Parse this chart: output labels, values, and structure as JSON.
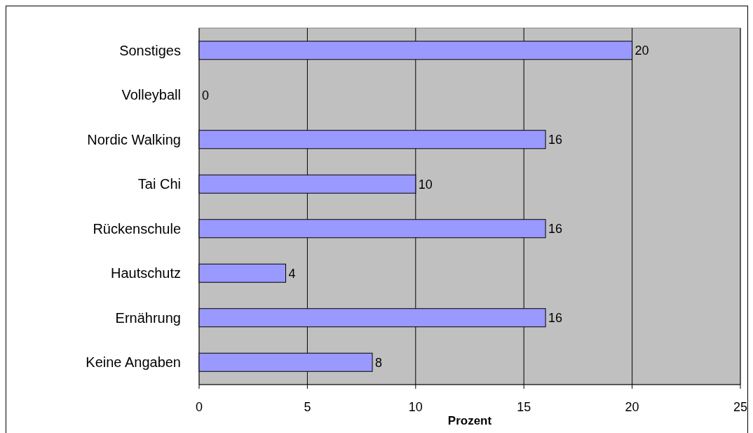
{
  "chart_data": {
    "type": "bar",
    "orientation": "horizontal",
    "xlabel": "Prozent",
    "categories": [
      "Sonstiges",
      "Volleyball",
      "Nordic Walking",
      "Tai Chi",
      "Rückenschule",
      "Hautschutz",
      "Ernährung",
      "Keine Angaben"
    ],
    "values": [
      20,
      0,
      16,
      10,
      16,
      4,
      16,
      8
    ],
    "color": "#9999ff",
    "xlim": [
      0,
      25
    ],
    "xticks": [
      0,
      5,
      10,
      15,
      20,
      25
    ],
    "grid": "x",
    "data_labels": true
  }
}
